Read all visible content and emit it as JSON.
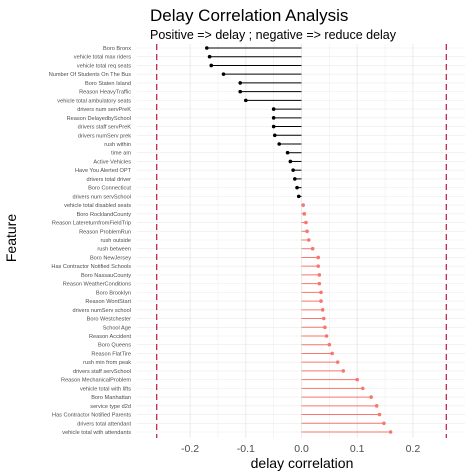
{
  "chart_data": {
    "type": "lollipop",
    "title": "Delay Correlation Analysis",
    "subtitle": "Positive => delay ; negative => reduce delay",
    "xlabel": "delay correlation",
    "ylabel": "Feature",
    "xlim": [
      -0.27,
      0.27
    ],
    "xticks": [
      -0.2,
      -0.1,
      0.0,
      0.1,
      0.2
    ],
    "xtick_labels": [
      "-0.2",
      "-0.1",
      "0.0",
      "0.1",
      "0.2"
    ],
    "reference_lines": [
      -0.26,
      0.26
    ],
    "grid": true,
    "colors": {
      "negative": "#000000",
      "positive": "#f8766d",
      "reference": "#c7254e",
      "grid": "#ebebeb"
    },
    "categories": [
      "Boro Bronx",
      "vehicle total max riders",
      "vehicle total req seats",
      "Number Of Students On The Bus",
      "Boro Staten Island",
      "Reason HeavyTraffic",
      "vehicle total ambulatory seats",
      "drivers num servPreK",
      "Reason DelayedbySchool",
      "drivers staff servPreK",
      "drivers numServ prek",
      "rush within",
      "time am",
      "Active Vehicles",
      "Have You Alerted OPT",
      "drivers total driver",
      "Boro Connecticut",
      "drivers num servSchool",
      "vehicle total disabled seats",
      "Boro RocklandCounty",
      "Reason LatereturnfromFieldTrip",
      "Reason ProblemRun",
      "rush outside",
      "rush between",
      "Boro NewJersey",
      "Has Contractor Notified Schools",
      "Boro NassauCounty",
      "Reason WeatherConditions",
      "Boro Brooklyn",
      "Reason WontStart",
      "drivers numServ school",
      "Boro Westchester",
      "School Age",
      "Reason Accident",
      "Boro Queens",
      "Reason FlatTire",
      "rush min from peak",
      "drivers staff servSchool",
      "Reason MechanicalProblem",
      "vehicle total with lifts",
      "Boro Manhattan",
      "service type d2d",
      "Has Contractor Notified Parents",
      "drivers total attendant",
      "vehicle total with attendants"
    ],
    "values": [
      -0.17,
      -0.165,
      -0.162,
      -0.14,
      -0.11,
      -0.11,
      -0.1,
      -0.05,
      -0.05,
      -0.05,
      -0.048,
      -0.04,
      -0.025,
      -0.02,
      -0.015,
      -0.012,
      -0.008,
      -0.005,
      0.003,
      0.005,
      0.008,
      0.01,
      0.013,
      0.02,
      0.03,
      0.03,
      0.032,
      0.032,
      0.035,
      0.035,
      0.038,
      0.04,
      0.042,
      0.045,
      0.05,
      0.055,
      0.065,
      0.075,
      0.1,
      0.11,
      0.125,
      0.135,
      0.14,
      0.148,
      0.16
    ]
  }
}
